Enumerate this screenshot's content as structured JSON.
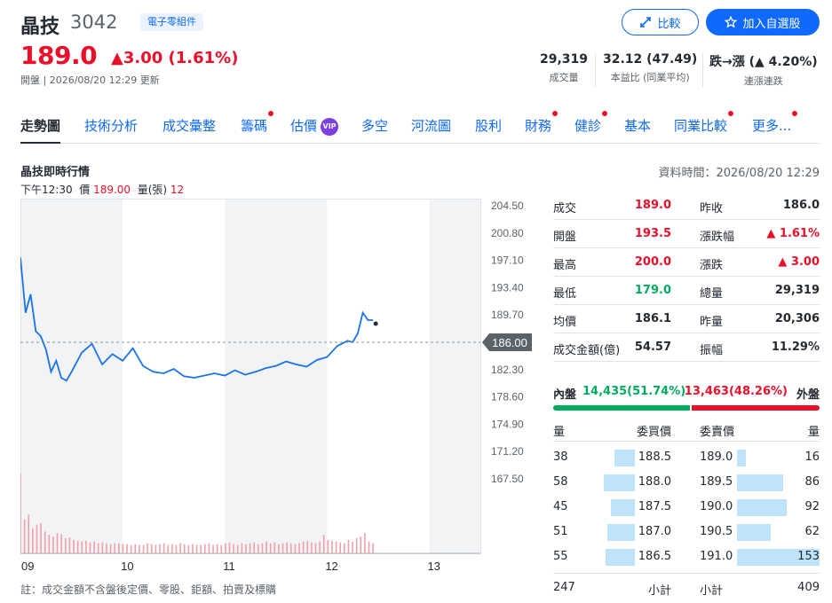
{
  "header": {
    "name": "晶技",
    "code": "3042",
    "industry": "電子零組件",
    "price": "189.0",
    "change": "▲3.00 (1.61%)",
    "status": "開盤 | 2026/08/20 12:29 更新",
    "compare_label": "比較",
    "watchlist_label": "加入自選股",
    "stats": [
      {
        "value": "29,319",
        "label": "成交量"
      },
      {
        "value": "32.12 (47.49)",
        "label": "本益比 (同業平均)"
      },
      {
        "value_prefix": "跌→漲",
        "value": "(▲ 4.20%)",
        "label": "連漲連跌"
      }
    ]
  },
  "tabs": [
    {
      "label": "走勢圖",
      "active": true,
      "dot": false
    },
    {
      "label": "技術分析",
      "dot": false
    },
    {
      "label": "成交彙整",
      "dot": false
    },
    {
      "label": "籌碼",
      "dot": true
    },
    {
      "label": "估價",
      "dot": false,
      "vip": "VIP"
    },
    {
      "label": "多空",
      "dot": false
    },
    {
      "label": "河流圖",
      "dot": false
    },
    {
      "label": "股利",
      "dot": false
    },
    {
      "label": "財務",
      "dot": true
    },
    {
      "label": "健診",
      "dot": true
    },
    {
      "label": "基本",
      "dot": false
    },
    {
      "label": "同業比較",
      "dot": true
    },
    {
      "label": "更多...",
      "dot": true
    }
  ],
  "section": {
    "title": "晶技即時行情",
    "data_time": "資料時間：2026/08/20 12:29",
    "hover_time": "下午12:30",
    "hover_price_label": "價",
    "hover_price": "189.00",
    "hover_vol_label": "量(張)",
    "hover_vol": "12"
  },
  "chart_data": {
    "type": "line",
    "y_ticks": [
      "204.50",
      "200.80",
      "197.10",
      "193.40",
      "189.70",
      "186.00",
      "182.30",
      "178.60",
      "174.90",
      "171.20",
      "167.50"
    ],
    "x_ticks": [
      "09",
      "10",
      "11",
      "12",
      "13"
    ],
    "reference_price": "186.00",
    "ylim": [
      167.5,
      204.5
    ],
    "series": [
      {
        "time": [
          0,
          0.05,
          0.1,
          0.15,
          0.2,
          0.25,
          0.3,
          0.35,
          0.4,
          0.45,
          0.5,
          0.6,
          0.7,
          0.8,
          0.9,
          1.0,
          1.1,
          1.2,
          1.3,
          1.4,
          1.5,
          1.6,
          1.7,
          1.8,
          1.9,
          2.0,
          2.1,
          2.2,
          2.3,
          2.4,
          2.5,
          2.6,
          2.7,
          2.8,
          2.9,
          3.0,
          3.1,
          3.2,
          3.25,
          3.3,
          3.35,
          3.4,
          3.45
        ],
        "values": [
          197.5,
          190.0,
          192.5,
          187.5,
          186.8,
          185.0,
          182.0,
          183.5,
          181.2,
          180.8,
          182.0,
          184.6,
          185.8,
          183.0,
          184.4,
          183.5,
          185.2,
          182.8,
          182.0,
          181.8,
          182.4,
          181.4,
          181.2,
          181.5,
          181.8,
          181.5,
          182.2,
          181.6,
          182.0,
          182.5,
          182.8,
          183.4,
          183.0,
          182.7,
          183.6,
          184.0,
          185.5,
          186.2,
          186.0,
          187.2,
          190.0,
          189.0,
          189.0
        ]
      }
    ],
    "volume": [
      95,
      40,
      46,
      30,
      34,
      36,
      26,
      22,
      20,
      24,
      23,
      18,
      19,
      16,
      15,
      14,
      15,
      13,
      14,
      12,
      13,
      12,
      11,
      12,
      12,
      11,
      11,
      10,
      11,
      10,
      10,
      12,
      11,
      10,
      11,
      12,
      10,
      11,
      10,
      12,
      11,
      10,
      11,
      10,
      10,
      11,
      12,
      10,
      11,
      10,
      12,
      13,
      11,
      10,
      12,
      11,
      12,
      13,
      11,
      12,
      14,
      12,
      13,
      11,
      12,
      13,
      12,
      11,
      12,
      14,
      15,
      13,
      12,
      14,
      22,
      16,
      15,
      14,
      13,
      12,
      16,
      14,
      18,
      20,
      24,
      14,
      12
    ]
  },
  "quote": [
    {
      "l1": "成交",
      "v1": "189.0",
      "c1": "red",
      "l2": "昨收",
      "v2": "186.0",
      "c2": ""
    },
    {
      "l1": "開盤",
      "v1": "193.5",
      "c1": "red",
      "l2": "漲跌幅",
      "v2": "▲ 1.61%",
      "c2": "red"
    },
    {
      "l1": "最高",
      "v1": "200.0",
      "c1": "red",
      "l2": "漲跌",
      "v2": "▲ 3.00",
      "c2": "red"
    },
    {
      "l1": "最低",
      "v1": "179.0",
      "c1": "green",
      "l2": "總量",
      "v2": "29,319",
      "c2": ""
    },
    {
      "l1": "均價",
      "v1": "186.1",
      "c1": "",
      "l2": "昨量",
      "v2": "20,306",
      "c2": ""
    },
    {
      "l1": "成交金額(億)",
      "v1": "54.57",
      "c1": "",
      "l2": "振幅",
      "v2": "11.29%",
      "c2": ""
    }
  ],
  "inout": {
    "in_label": "內盤",
    "in_value": "14,435(51.74%)",
    "in_pct": 0.5174,
    "out_value": "13,463(48.26%)",
    "out_label": "外盤"
  },
  "orderbook": {
    "head": {
      "qty": "量",
      "bid": "委買價",
      "ask": "委賣價",
      "qty2": "量"
    },
    "rows": [
      {
        "bq": "38",
        "bp": "188.5",
        "ap": "189.0",
        "aq": "16"
      },
      {
        "bq": "58",
        "bp": "188.0",
        "ap": "189.5",
        "aq": "86"
      },
      {
        "bq": "45",
        "bp": "187.5",
        "ap": "190.0",
        "aq": "92"
      },
      {
        "bq": "51",
        "bp": "187.0",
        "ap": "190.5",
        "aq": "62"
      },
      {
        "bq": "55",
        "bp": "186.5",
        "ap": "191.0",
        "aq": "153"
      }
    ],
    "foot": {
      "bid_total": "247",
      "bid_label": "小計",
      "ask_label": "小計",
      "ask_total": "409"
    }
  },
  "footnote": "註：成交金額不含盤後定價、零股、鉅額、拍賣及標購"
}
